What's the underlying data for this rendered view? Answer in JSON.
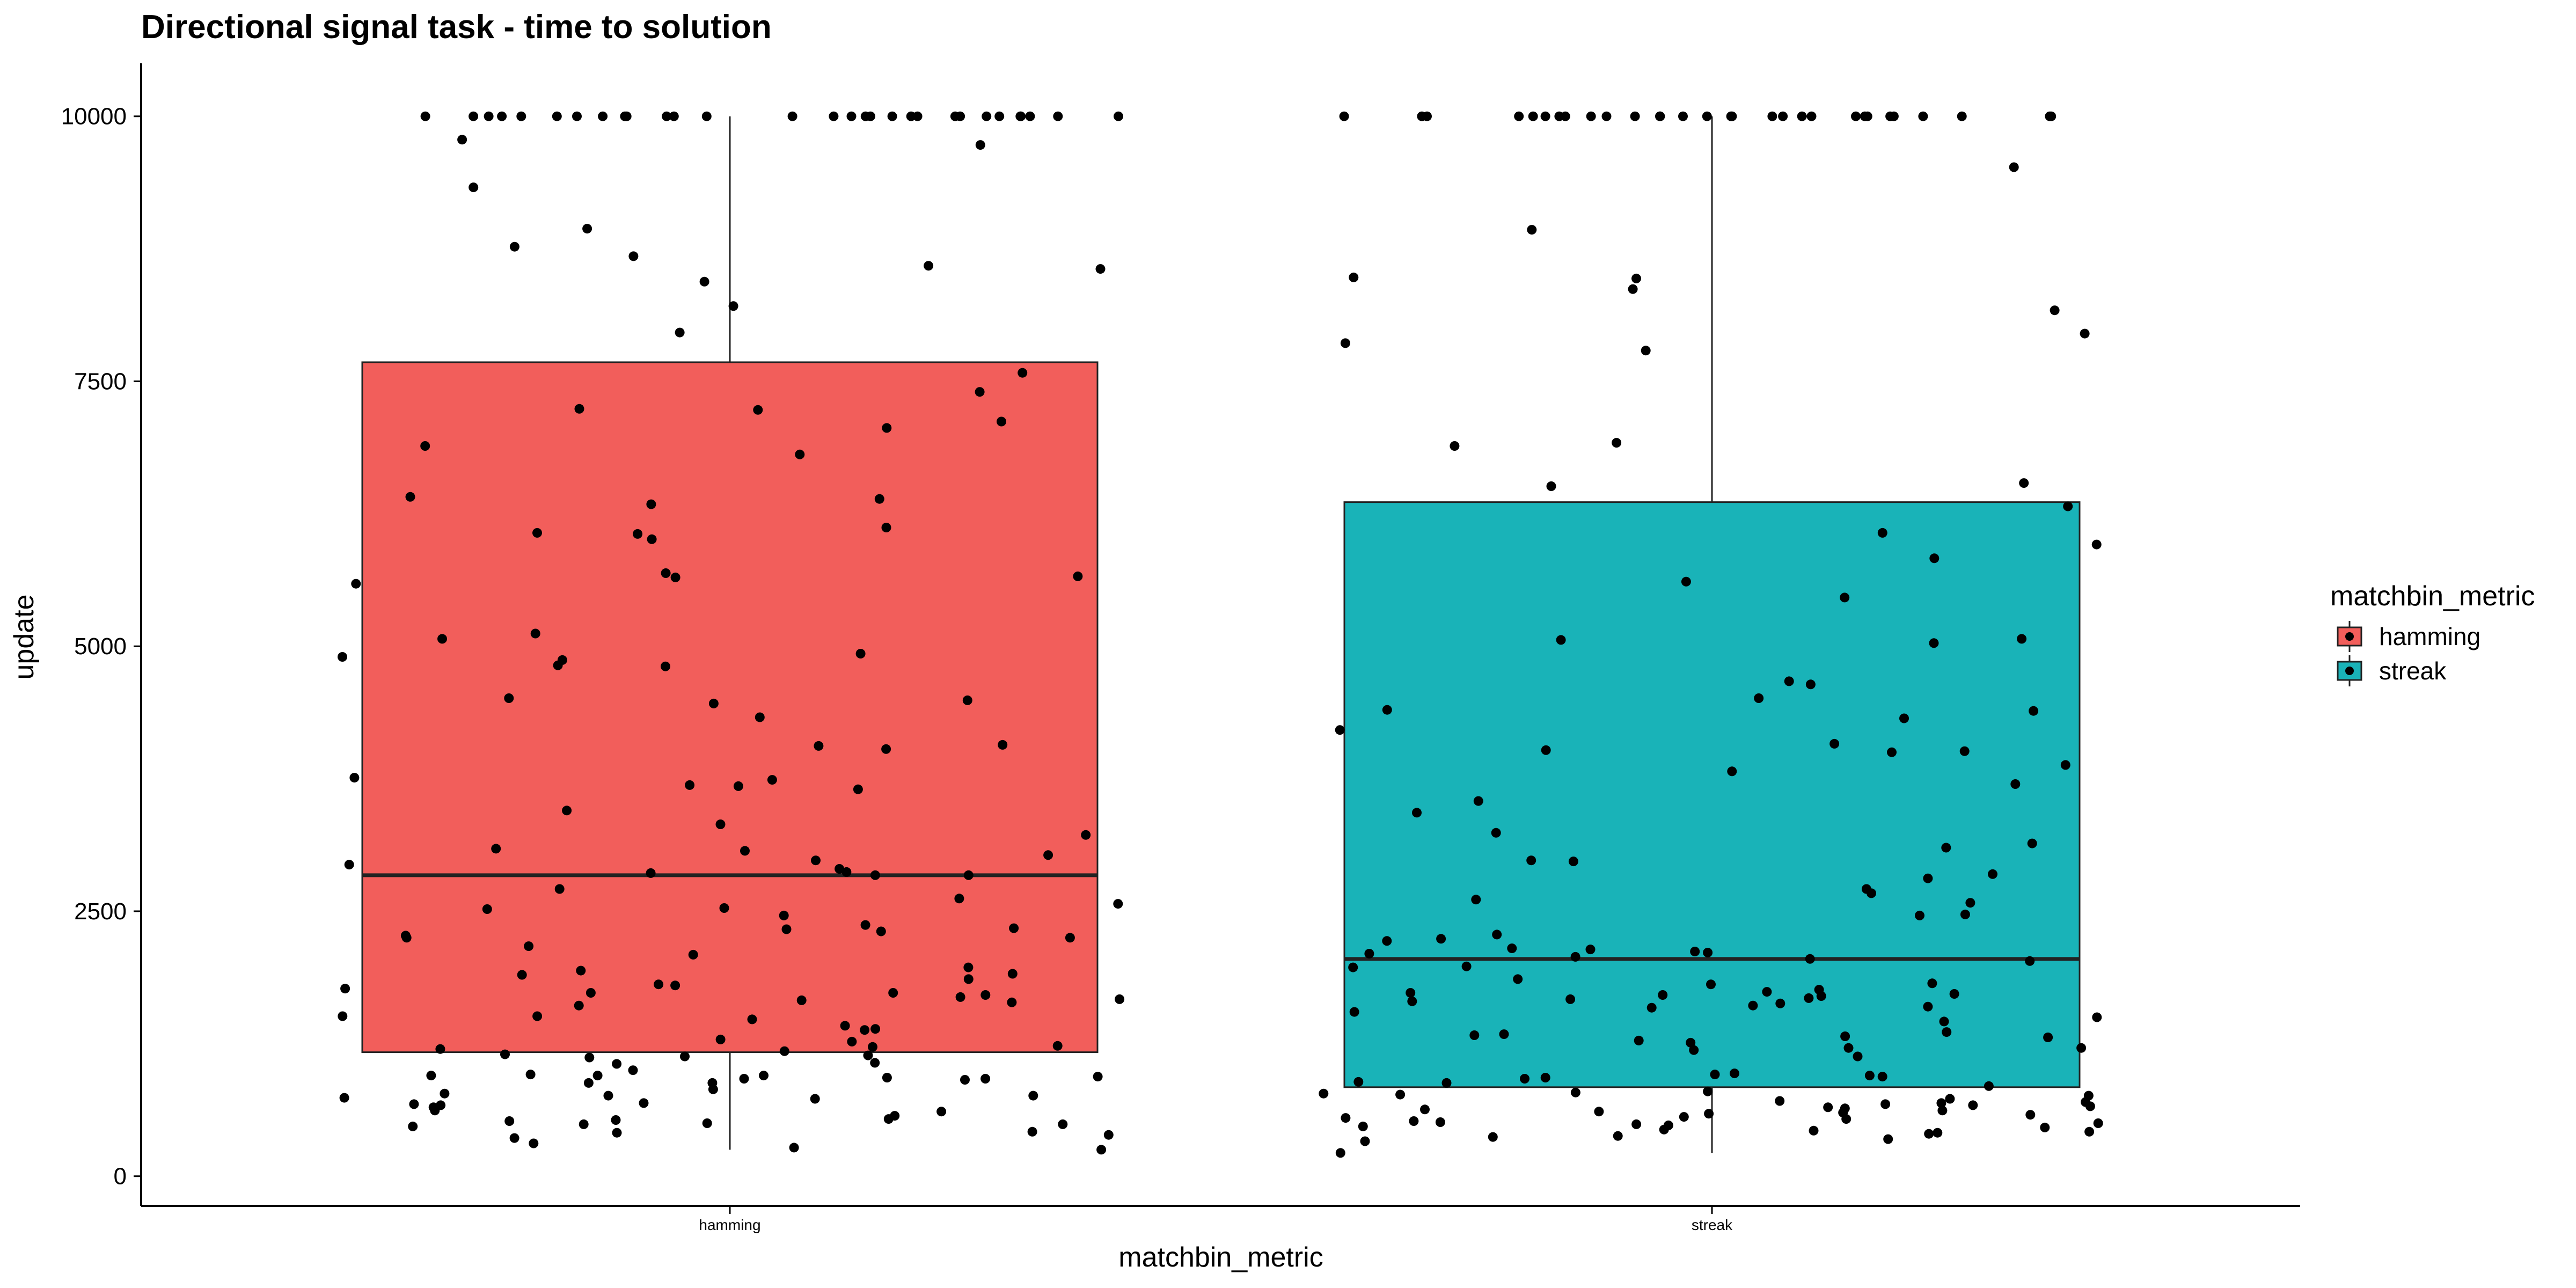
{
  "chart_data": {
    "type": "boxplot",
    "title": "Directional signal task - time to solution",
    "xlabel": "matchbin_metric",
    "ylabel": "update",
    "categories": [
      "hamming",
      "streak"
    ],
    "ylim": [
      -280,
      10500
    ],
    "yticks": [
      0,
      2500,
      5000,
      7500,
      10000
    ],
    "ytick_labels": [
      "0",
      "2500",
      "5000",
      "7500",
      "10000"
    ],
    "grid": false,
    "legend": {
      "title": "matchbin_metric",
      "placement": "right",
      "entries": [
        {
          "label": "hamming",
          "color": "#F25E5B"
        },
        {
          "label": "streak",
          "color": "#19B3B8"
        }
      ]
    },
    "boxes": [
      {
        "category": "hamming",
        "color": "#F25E5B",
        "q1": 1170,
        "median": 2840,
        "q3": 7680,
        "whisker_low": 250,
        "whisker_high": 10000
      },
      {
        "category": "streak",
        "color": "#19B3B8",
        "q1": 840,
        "median": 2050,
        "q3": 6360,
        "whisker_low": 220,
        "whisker_high": 10000
      }
    ],
    "points": [
      {
        "category": "hamming",
        "values": [
          10000,
          10000,
          10000,
          10000,
          10000,
          10000,
          10000,
          10000,
          10000,
          10000,
          10000,
          10000,
          10000,
          10000,
          10000,
          10000,
          10000,
          10000,
          10000,
          10000,
          10000,
          10000,
          10000,
          10000,
          10000,
          10000,
          10000,
          10000,
          10000,
          10000,
          9730,
          9330,
          9780,
          8940,
          8680,
          8210,
          8560,
          8440,
          8590,
          8770,
          7960,
          7580,
          7400,
          7240,
          7230,
          7120,
          7060,
          6890,
          6810,
          6410,
          6390,
          6340,
          6120,
          6070,
          6060,
          6010,
          5690,
          5660,
          5650,
          5590,
          5120,
          5070,
          4930,
          4900,
          4870,
          4820,
          4810,
          4510,
          4490,
          4460,
          4330,
          4070,
          4060,
          4030,
          3760,
          3740,
          3690,
          3680,
          3650,
          3450,
          3320,
          3220,
          3090,
          3070,
          3030,
          2980,
          2940,
          2900,
          2870,
          2860,
          2840,
          2840,
          2710,
          2620,
          2570,
          2530,
          2520,
          2460,
          2370,
          2340,
          2330,
          2310,
          2270,
          2250,
          2250,
          2170,
          2090,
          1970,
          1940,
          1910,
          1900,
          1860,
          1810,
          1800,
          1770,
          1730,
          1730,
          1710,
          1690,
          1670,
          1660,
          1640,
          1610,
          1510,
          1510,
          1480,
          1420,
          1390,
          1380,
          1290,
          1270,
          1230,
          1220,
          1200,
          1180,
          1150,
          1140,
          1130,
          1120,
          1070,
          1060,
          1000,
          960,
          950,
          950,
          950,
          940,
          930,
          920,
          920,
          910,
          880,
          880,
          820,
          780,
          760,
          760,
          740,
          730,
          690,
          680,
          670,
          650,
          620,
          610,
          570,
          540,
          530,
          520,
          500,
          490,
          490,
          470,
          420,
          410,
          390,
          360,
          310,
          270,
          250
        ]
      },
      {
        "category": "streak",
        "values": [
          10000,
          10000,
          10000,
          10000,
          10000,
          10000,
          10000,
          10000,
          10000,
          10000,
          10000,
          10000,
          10000,
          10000,
          10000,
          10000,
          10000,
          10000,
          10000,
          10000,
          10000,
          10000,
          10000,
          10000,
          10000,
          10000,
          10000,
          10000,
          10000,
          10000,
          9520,
          8930,
          8480,
          8470,
          8370,
          8170,
          7950,
          7860,
          7790,
          6920,
          6890,
          6540,
          6510,
          6320,
          6070,
          5960,
          5830,
          5610,
          5460,
          5070,
          5060,
          5030,
          4670,
          4640,
          4510,
          4400,
          4390,
          4320,
          4210,
          4080,
          4020,
          4010,
          4000,
          3880,
          3820,
          3700,
          3540,
          3430,
          3240,
          3140,
          3100,
          2980,
          2970,
          2850,
          2810,
          2710,
          2670,
          2610,
          2580,
          2470,
          2460,
          2280,
          2240,
          2220,
          2150,
          2140,
          2120,
          2110,
          2100,
          2070,
          2050,
          2030,
          1980,
          1970,
          1860,
          1820,
          1810,
          1760,
          1740,
          1730,
          1720,
          1710,
          1700,
          1680,
          1670,
          1650,
          1630,
          1610,
          1600,
          1590,
          1550,
          1500,
          1460,
          1360,
          1340,
          1330,
          1320,
          1310,
          1280,
          1260,
          1210,
          1210,
          1190,
          1130,
          970,
          960,
          950,
          940,
          930,
          920,
          890,
          880,
          850,
          800,
          790,
          780,
          770,
          760,
          730,
          710,
          700,
          690,
          680,
          670,
          660,
          650,
          640,
          630,
          620,
          610,
          600,
          590,
          580,
          560,
          550,
          540,
          520,
          510,
          500,
          490,
          480,
          470,
          460,
          440,
          430,
          420,
          410,
          400,
          380,
          370,
          350,
          330,
          220
        ]
      }
    ]
  }
}
